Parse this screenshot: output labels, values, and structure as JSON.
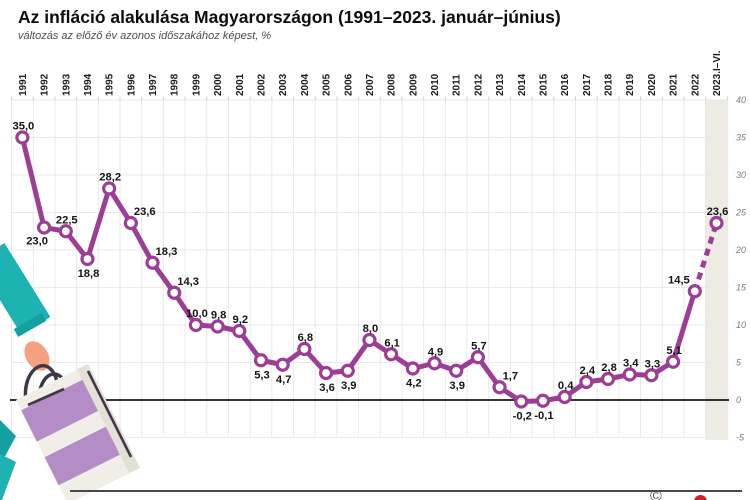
{
  "header": {
    "title": "Az infláció alakulása Magyarországon (1991–2023. január–június)",
    "subtitle": "változás az előző év azonos időszakához képest, %"
  },
  "chart_data": {
    "type": "line",
    "categories": [
      "1991",
      "1992",
      "1993",
      "1994",
      "1995",
      "1996",
      "1997",
      "1998",
      "1999",
      "2000",
      "2001",
      "2002",
      "2003",
      "2004",
      "2005",
      "2006",
      "2007",
      "2008",
      "2009",
      "2010",
      "2011",
      "2012",
      "2013",
      "2014",
      "2015",
      "2016",
      "2017",
      "2018",
      "2019",
      "2020",
      "2021",
      "2022",
      "2023.I–VI."
    ],
    "values": [
      35.0,
      23.0,
      22.5,
      18.8,
      28.2,
      23.6,
      18.3,
      14.3,
      10.0,
      9.8,
      9.2,
      5.3,
      4.7,
      6.8,
      3.6,
      3.9,
      8.0,
      6.1,
      4.2,
      4.9,
      3.9,
      5.7,
      1.7,
      -0.2,
      -0.1,
      0.4,
      2.4,
      2.8,
      3.4,
      3.3,
      5.1,
      14.5,
      23.6
    ],
    "point_labels": [
      "35,0",
      "23,0",
      "22,5",
      "18,8",
      "28,2",
      "23,6",
      "18,3",
      "14,3",
      "10,0",
      "9,8",
      "9,2",
      "5,3",
      "4,7",
      "6,8",
      "3,6",
      "3,9",
      "8,0",
      "6,1",
      "4,2",
      "4,9",
      "3,9",
      "5,7",
      "1,7",
      "-0,2",
      "-0,1",
      "0,4",
      "2,4",
      "2,8",
      "3,4",
      "3,3",
      "5,1",
      "14,5",
      "23,6"
    ],
    "label_pos": [
      "above",
      "below-left",
      "above",
      "below",
      "above",
      "above-right",
      "above-right",
      "above-right",
      "above",
      "above",
      "above",
      "below",
      "below",
      "above",
      "below",
      "below",
      "above",
      "above",
      "below",
      "above",
      "below",
      "above",
      "above-right",
      "below",
      "below",
      "above",
      "above",
      "above",
      "above",
      "above",
      "above",
      "above-left",
      "above"
    ],
    "ylim": [
      -5,
      40
    ],
    "ytick_interval": 5,
    "y_axis_labels": [
      "40",
      "35",
      "30",
      "25",
      "20",
      "15",
      "10",
      "5",
      "0",
      "-5"
    ],
    "grid": true,
    "legend": "none",
    "last_segment_dashed": true,
    "line_color": "#9c3e96",
    "marker_fill": "#ffffff",
    "label_color": "#141414",
    "band_color": "#eeebe2",
    "grid_color": "#e9e9e9",
    "tick_color": "#cfcfcf",
    "zero_line_color": "#1a1a1a",
    "axis_label_color": "#7c7c7c",
    "year_label_color": "#1c1c1c"
  },
  "illustration": {
    "description": "hand-with-shopping-bag",
    "colors": {
      "teal": "#1eb2b2",
      "teal_dark": "#149fa1",
      "skin": "#f3a181",
      "bag": "#f0eee7",
      "bag_side": "#e3e0d7",
      "stripe": "#b48dc6",
      "handle_dark": "#3f3745"
    }
  },
  "footer": {
    "copyright_glyph": "©"
  }
}
